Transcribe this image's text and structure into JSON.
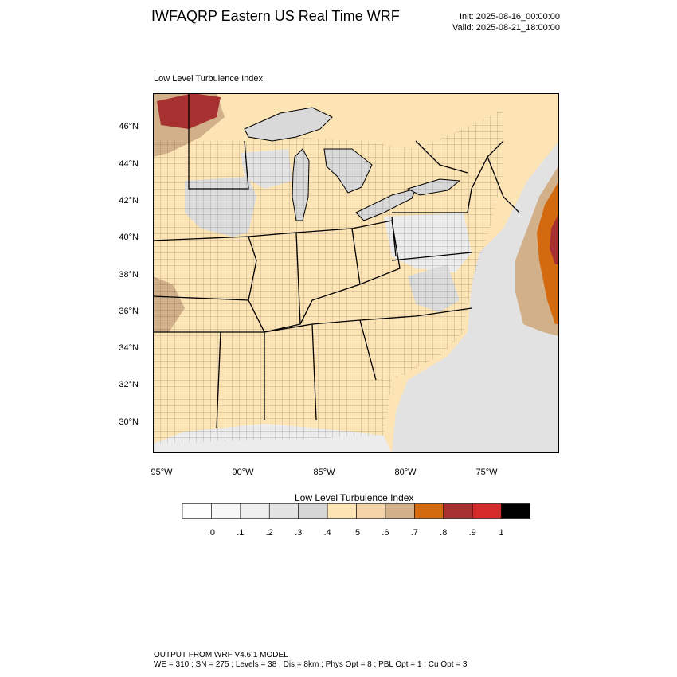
{
  "header": {
    "title": "IWFAQRP Eastern US Real Time WRF",
    "init": "Init: 2025-08-16_00:00:00",
    "valid": "Valid: 2025-08-21_18:00:00"
  },
  "map": {
    "subtitle": "Low Level Turbulence Index",
    "lat_ticks": [
      "46°N",
      "44°N",
      "42°N",
      "40°N",
      "38°N",
      "36°N",
      "34°N",
      "32°N",
      "30°N"
    ],
    "lon_ticks": [
      "95°W",
      "90°W",
      "85°W",
      "80°W",
      "75°W"
    ],
    "colors": {
      "land": "#fde4b4",
      "water": "#ffffff",
      "gray": "#d9d9d9",
      "lightgray": "#ececec",
      "tan": "#d2b08a",
      "orange": "#d36a10",
      "darkred": "#a73030"
    }
  },
  "colorbar": {
    "title": "Low Level Turbulence Index",
    "colors": [
      "#ffffff",
      "#f7f7f7",
      "#efefef",
      "#e3e3e3",
      "#d5d5d5",
      "#fde4b4",
      "#f2d4a8",
      "#d2b08a",
      "#d36a10",
      "#a73030",
      "#d42a2a",
      "#000000"
    ],
    "labels": [
      ".0",
      ".1",
      ".2",
      ".3",
      ".4",
      ".5",
      ".6",
      ".7",
      ".8",
      ".9",
      "1"
    ]
  },
  "footer": {
    "line1": "OUTPUT FROM WRF V4.6.1 MODEL",
    "line2": "WE = 310 ; SN = 275 ; Levels = 38 ; Dis = 8km ; Phys Opt = 8 ; PBL Opt = 1 ; Cu Opt = 3"
  }
}
